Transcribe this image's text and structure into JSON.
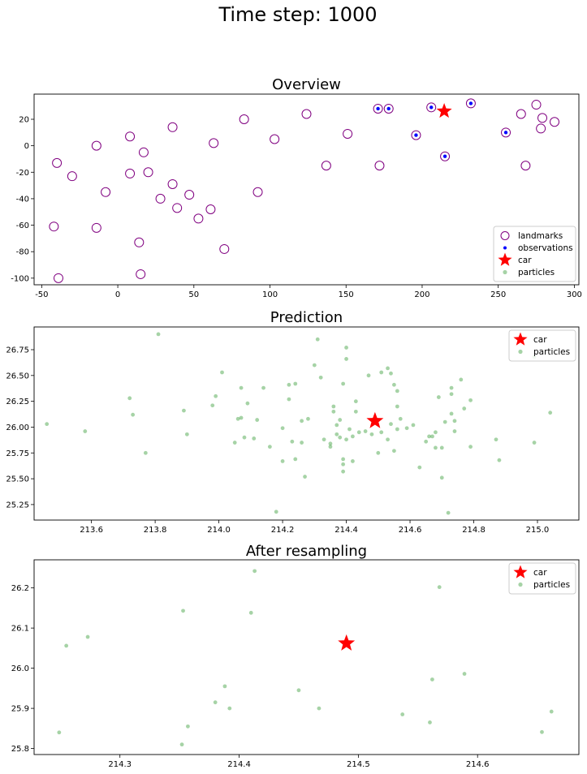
{
  "suptitle": "Time step: 1000",
  "chart_data": [
    {
      "type": "scatter",
      "title": "Overview",
      "xlim": [
        -55,
        303
      ],
      "ylim": [
        -105,
        39
      ],
      "xticks": [
        -50,
        0,
        50,
        100,
        150,
        200,
        250,
        300
      ],
      "yticks": [
        -100,
        -80,
        -60,
        -40,
        -20,
        0,
        20
      ],
      "legend_position": "lower-right",
      "series": [
        {
          "name": "landmarks",
          "marker": "open-circle",
          "color": "#800080",
          "points": [
            [
              -42,
              -61
            ],
            [
              -39,
              -100
            ],
            [
              -40,
              -13
            ],
            [
              -30,
              -23
            ],
            [
              -14,
              -62
            ],
            [
              -14,
              0
            ],
            [
              -8,
              -35
            ],
            [
              8,
              7
            ],
            [
              8,
              -21
            ],
            [
              14,
              -73
            ],
            [
              15,
              -97
            ],
            [
              17,
              -5
            ],
            [
              20,
              -20
            ],
            [
              28,
              -40
            ],
            [
              36,
              14
            ],
            [
              36,
              -29
            ],
            [
              39,
              -47
            ],
            [
              47,
              -37
            ],
            [
              53,
              -55
            ],
            [
              61,
              -48
            ],
            [
              63,
              2
            ],
            [
              70,
              -78
            ],
            [
              83,
              20
            ],
            [
              92,
              -35
            ],
            [
              103,
              5
            ],
            [
              124,
              24
            ],
            [
              137,
              -15
            ],
            [
              151,
              9
            ],
            [
              171,
              28
            ],
            [
              172,
              -15
            ],
            [
              178,
              28
            ],
            [
              196,
              8
            ],
            [
              206,
              29
            ],
            [
              215,
              -8
            ],
            [
              232,
              32
            ],
            [
              255,
              10
            ],
            [
              265,
              24
            ],
            [
              268,
              -15
            ],
            [
              275,
              31
            ],
            [
              278,
              13
            ],
            [
              279,
              21
            ],
            [
              287,
              18
            ]
          ]
        },
        {
          "name": "observations",
          "marker": "dot",
          "color": "#0000ff",
          "points": [
            [
              171,
              28
            ],
            [
              178,
              28
            ],
            [
              196,
              8
            ],
            [
              206,
              29
            ],
            [
              215,
              -8
            ],
            [
              232,
              32
            ],
            [
              255,
              10
            ]
          ]
        },
        {
          "name": "car",
          "marker": "star",
          "color": "#ff0000",
          "points": [
            [
              214.5,
              26.1
            ]
          ]
        },
        {
          "name": "particles",
          "marker": "dot",
          "color": "#008000",
          "points": [
            [
              214.4,
              26.0
            ],
            [
              214.6,
              25.9
            ]
          ]
        }
      ]
    },
    {
      "type": "scatter",
      "title": "Prediction",
      "xlim": [
        213.42,
        215.13
      ],
      "ylim": [
        25.1,
        26.97
      ],
      "xticks": [
        213.4,
        213.6,
        213.8,
        214.0,
        214.2,
        214.4,
        214.6,
        214.8,
        215.0
      ],
      "yticks": [
        25.25,
        25.5,
        25.75,
        26.0,
        26.25,
        26.5,
        26.75
      ],
      "legend_position": "top-right",
      "series": [
        {
          "name": "car",
          "marker": "star",
          "color": "#ff0000",
          "points": [
            [
              214.49,
              26.06
            ]
          ]
        },
        {
          "name": "particles",
          "marker": "dot",
          "color": "#008000",
          "points": [
            [
              213.46,
              26.03
            ],
            [
              213.58,
              25.96
            ],
            [
              213.72,
              26.28
            ],
            [
              213.73,
              26.12
            ],
            [
              213.77,
              25.75
            ],
            [
              213.81,
              26.9
            ],
            [
              213.89,
              26.16
            ],
            [
              213.9,
              25.93
            ],
            [
              213.98,
              26.21
            ],
            [
              213.99,
              26.3
            ],
            [
              214.01,
              26.53
            ],
            [
              214.05,
              25.85
            ],
            [
              214.06,
              26.08
            ],
            [
              214.07,
              26.09
            ],
            [
              214.07,
              26.38
            ],
            [
              214.08,
              25.9
            ],
            [
              214.09,
              26.23
            ],
            [
              214.11,
              25.89
            ],
            [
              214.12,
              26.07
            ],
            [
              214.14,
              26.38
            ],
            [
              214.16,
              25.81
            ],
            [
              214.18,
              25.18
            ],
            [
              214.2,
              25.99
            ],
            [
              214.2,
              25.67
            ],
            [
              214.22,
              26.41
            ],
            [
              214.22,
              26.27
            ],
            [
              214.23,
              25.86
            ],
            [
              214.24,
              25.69
            ],
            [
              214.24,
              26.42
            ],
            [
              214.26,
              25.85
            ],
            [
              214.26,
              26.06
            ],
            [
              214.27,
              25.52
            ],
            [
              214.28,
              26.08
            ],
            [
              214.3,
              26.6
            ],
            [
              214.31,
              26.85
            ],
            [
              214.32,
              26.48
            ],
            [
              214.33,
              25.88
            ],
            [
              214.35,
              25.84
            ],
            [
              214.35,
              25.81
            ],
            [
              214.36,
              26.15
            ],
            [
              214.36,
              26.2
            ],
            [
              214.37,
              26.02
            ],
            [
              214.37,
              25.93
            ],
            [
              214.38,
              26.07
            ],
            [
              214.38,
              25.9
            ],
            [
              214.39,
              25.69
            ],
            [
              214.39,
              25.64
            ],
            [
              214.39,
              25.57
            ],
            [
              214.39,
              26.42
            ],
            [
              214.4,
              26.66
            ],
            [
              214.4,
              26.77
            ],
            [
              214.4,
              25.88
            ],
            [
              214.41,
              25.98
            ],
            [
              214.42,
              25.91
            ],
            [
              214.42,
              25.67
            ],
            [
              214.43,
              26.25
            ],
            [
              214.43,
              26.15
            ],
            [
              214.44,
              25.95
            ],
            [
              214.46,
              25.96
            ],
            [
              214.47,
              26.5
            ],
            [
              214.48,
              25.93
            ],
            [
              214.5,
              25.75
            ],
            [
              214.51,
              26.53
            ],
            [
              214.51,
              25.95
            ],
            [
              214.53,
              26.57
            ],
            [
              214.53,
              25.88
            ],
            [
              214.54,
              26.03
            ],
            [
              214.54,
              26.52
            ],
            [
              214.55,
              26.41
            ],
            [
              214.55,
              25.77
            ],
            [
              214.56,
              26.35
            ],
            [
              214.56,
              26.2
            ],
            [
              214.56,
              25.98
            ],
            [
              214.57,
              26.08
            ],
            [
              214.59,
              25.99
            ],
            [
              214.61,
              26.02
            ],
            [
              214.63,
              25.61
            ],
            [
              214.65,
              25.86
            ],
            [
              214.66,
              25.91
            ],
            [
              214.67,
              25.91
            ],
            [
              214.68,
              25.95
            ],
            [
              214.68,
              25.8
            ],
            [
              214.69,
              26.29
            ],
            [
              214.7,
              25.8
            ],
            [
              214.7,
              25.51
            ],
            [
              214.71,
              26.05
            ],
            [
              214.72,
              25.17
            ],
            [
              214.73,
              26.38
            ],
            [
              214.73,
              26.13
            ],
            [
              214.73,
              26.32
            ],
            [
              214.74,
              26.06
            ],
            [
              214.74,
              25.96
            ],
            [
              214.76,
              26.46
            ],
            [
              214.77,
              26.18
            ],
            [
              214.79,
              26.26
            ],
            [
              214.79,
              25.81
            ],
            [
              214.87,
              25.88
            ],
            [
              214.88,
              25.68
            ],
            [
              214.99,
              26.68
            ],
            [
              214.99,
              25.85
            ],
            [
              215.04,
              26.14
            ]
          ]
        }
      ]
    },
    {
      "type": "scatter",
      "title": "After resampling",
      "xlim": [
        214.228,
        214.685
      ],
      "ylim": [
        25.785,
        26.27
      ],
      "xticks": [
        214.3,
        214.4,
        214.5,
        214.6
      ],
      "yticks": [
        25.8,
        25.9,
        26.0,
        26.1,
        26.2
      ],
      "legend_position": "top-right",
      "series": [
        {
          "name": "car",
          "marker": "star",
          "color": "#ff0000",
          "points": [
            [
              214.49,
              26.062
            ]
          ]
        },
        {
          "name": "particles",
          "marker": "dot",
          "color": "#008000",
          "points": [
            [
              214.249,
              25.84
            ],
            [
              214.255,
              26.056
            ],
            [
              214.273,
              26.078
            ],
            [
              214.352,
              25.81
            ],
            [
              214.353,
              26.143
            ],
            [
              214.357,
              25.855
            ],
            [
              214.38,
              25.915
            ],
            [
              214.388,
              25.955
            ],
            [
              214.392,
              25.9
            ],
            [
              214.41,
              26.138
            ],
            [
              214.413,
              26.242
            ],
            [
              214.45,
              25.945
            ],
            [
              214.467,
              25.9
            ],
            [
              214.537,
              25.885
            ],
            [
              214.56,
              25.865
            ],
            [
              214.562,
              25.972
            ],
            [
              214.568,
              26.202
            ],
            [
              214.589,
              25.986
            ],
            [
              214.654,
              25.841
            ],
            [
              214.662,
              25.892
            ]
          ]
        }
      ]
    }
  ]
}
